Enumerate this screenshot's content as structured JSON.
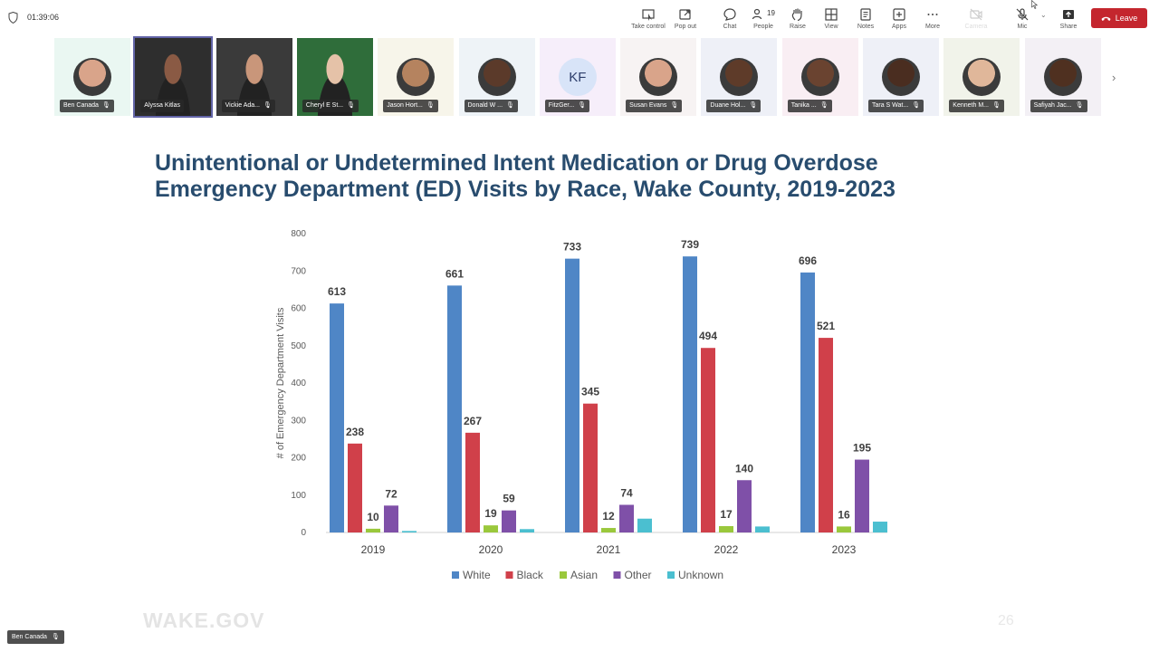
{
  "meeting": {
    "timer": "01:39:06",
    "people_count": "19",
    "toolbar": [
      {
        "id": "take-control",
        "label": "Take control",
        "icon": "take-control-icon"
      },
      {
        "id": "pop-out",
        "label": "Pop out",
        "icon": "pop-out-icon"
      },
      {
        "id": "chat",
        "label": "Chat",
        "icon": "chat-icon"
      },
      {
        "id": "people",
        "label": "People",
        "icon": "people-icon"
      },
      {
        "id": "raise",
        "label": "Raise",
        "icon": "raise-hand-icon"
      },
      {
        "id": "view",
        "label": "View",
        "icon": "view-grid-icon"
      },
      {
        "id": "notes",
        "label": "Notes",
        "icon": "notes-icon"
      },
      {
        "id": "apps",
        "label": "Apps",
        "icon": "apps-icon"
      },
      {
        "id": "more",
        "label": "More",
        "icon": "more-icon"
      },
      {
        "id": "camera",
        "label": "Camera",
        "icon": "camera-off-icon"
      },
      {
        "id": "mic",
        "label": "Mic",
        "icon": "mic-off-icon"
      },
      {
        "id": "share",
        "label": "Share",
        "icon": "share-icon"
      }
    ],
    "leave_label": "Leave",
    "leave_color": "#c4262e",
    "participants": [
      {
        "name": "Ben Canada",
        "type": "avatar",
        "muted": true
      },
      {
        "name": "Alyssa Kitlas",
        "type": "video",
        "active": true,
        "muted": false
      },
      {
        "name": "Vickie Ada...",
        "type": "video",
        "muted": true
      },
      {
        "name": "Cheryl E St...",
        "type": "video",
        "muted": true
      },
      {
        "name": "Jason Hort...",
        "type": "avatar",
        "muted": true
      },
      {
        "name": "Donald W ...",
        "type": "avatar",
        "muted": true
      },
      {
        "name": "FitzGer...",
        "type": "initials",
        "initials": "KF",
        "muted": true
      },
      {
        "name": "Susan Evans",
        "type": "avatar",
        "muted": true
      },
      {
        "name": "Duane Hol...",
        "type": "avatar",
        "muted": true
      },
      {
        "name": "Tanika ...",
        "type": "avatar",
        "muted": true
      },
      {
        "name": "Tara S Wat...",
        "type": "avatar",
        "muted": true
      },
      {
        "name": "Kenneth M...",
        "type": "avatar",
        "muted": true
      },
      {
        "name": "Safiyah Jac...",
        "type": "avatar",
        "muted": true
      }
    ],
    "self_name": "Ben Canada"
  },
  "slide": {
    "title_line1": "Unintentional or Undetermined Intent Medication or Drug Overdose",
    "title_line2": "Emergency Department (ED) Visits by Race, Wake County, 2019-2023",
    "footer_logo": "WAKE.GOV",
    "page_number": "26"
  },
  "chart_data": {
    "type": "bar",
    "title": "Unintentional or Undetermined Intent Medication or Drug Overdose Emergency Department (ED) Visits by Race, Wake County, 2019-2023",
    "xlabel": "",
    "ylabel": "# of Emergency Department Visits",
    "ylim": [
      0,
      800
    ],
    "yticks": [
      0,
      100,
      200,
      300,
      400,
      500,
      600,
      700,
      800
    ],
    "categories": [
      "2019",
      "2020",
      "2021",
      "2022",
      "2023"
    ],
    "legend_position": "bottom",
    "grid": false,
    "series": [
      {
        "name": "White",
        "color": "#4f86c6",
        "values": [
          613,
          661,
          733,
          739,
          696
        ],
        "labeled": true
      },
      {
        "name": "Black",
        "color": "#d0404a",
        "values": [
          238,
          267,
          345,
          494,
          521
        ],
        "labeled": true
      },
      {
        "name": "Asian",
        "color": "#9ac83c",
        "values": [
          10,
          19,
          12,
          17,
          16
        ],
        "labeled": true
      },
      {
        "name": "Other",
        "color": "#7f50a8",
        "values": [
          72,
          59,
          74,
          140,
          195
        ],
        "labeled": true
      },
      {
        "name": "Unknown",
        "color": "#4bbfd0",
        "values": [
          4,
          9,
          37,
          16,
          29
        ],
        "labeled": false
      }
    ]
  }
}
